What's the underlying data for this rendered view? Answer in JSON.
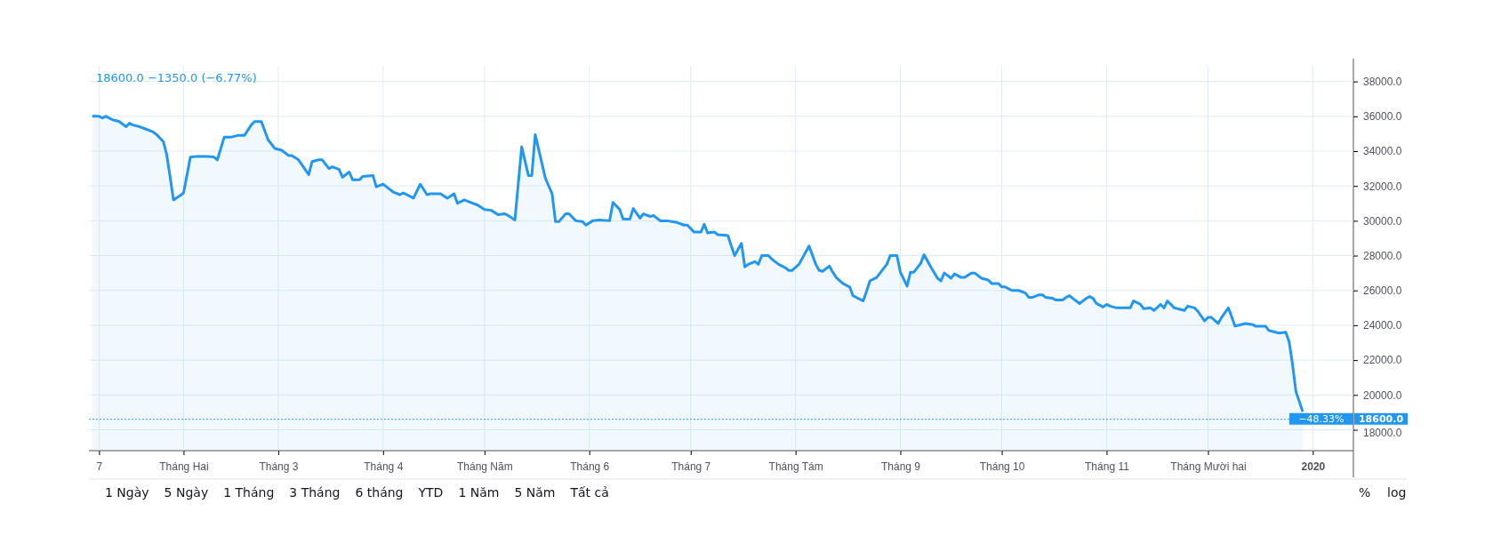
{
  "chart_data": {
    "type": "area",
    "x": [
      "2019-01-05",
      "2019-01-07",
      "2019-01-08",
      "2019-01-09",
      "2019-01-11",
      "2019-01-13",
      "2019-01-15",
      "2019-01-16",
      "2019-01-17",
      "2019-01-19",
      "2019-01-21",
      "2019-01-23",
      "2019-01-24",
      "2019-01-26",
      "2019-01-27",
      "2019-01-28",
      "2019-01-29",
      "2019-01-31",
      "2019-02-01",
      "2019-02-03",
      "2019-02-05",
      "2019-02-08",
      "2019-02-10",
      "2019-02-11",
      "2019-02-13",
      "2019-02-15",
      "2019-02-17",
      "2019-02-19",
      "2019-02-21",
      "2019-02-22",
      "2019-02-24",
      "2019-02-26",
      "2019-02-28",
      "2019-03-02",
      "2019-03-04",
      "2019-03-05",
      "2019-03-07",
      "2019-03-10",
      "2019-03-11",
      "2019-03-13",
      "2019-03-14",
      "2019-03-16",
      "2019-03-17",
      "2019-03-19",
      "2019-03-20",
      "2019-03-22",
      "2019-03-23",
      "2019-03-25",
      "2019-03-26",
      "2019-03-29",
      "2019-03-30",
      "2019-04-01",
      "2019-04-02",
      "2019-04-04",
      "2019-04-06",
      "2019-04-07",
      "2019-04-10",
      "2019-04-12",
      "2019-04-14",
      "2019-04-15",
      "2019-04-18",
      "2019-04-20",
      "2019-04-22",
      "2019-04-23",
      "2019-04-25",
      "2019-04-27",
      "2019-04-29",
      "2019-05-01",
      "2019-05-03",
      "2019-05-05",
      "2019-05-07",
      "2019-05-08",
      "2019-05-10",
      "2019-05-12",
      "2019-05-14",
      "2019-05-15",
      "2019-05-16",
      "2019-05-19",
      "2019-05-21",
      "2019-05-22",
      "2019-05-23",
      "2019-05-25",
      "2019-05-26",
      "2019-05-28",
      "2019-05-30",
      "2019-05-31",
      "2019-06-02",
      "2019-06-04",
      "2019-06-07",
      "2019-06-08",
      "2019-06-10",
      "2019-06-11",
      "2019-06-13",
      "2019-06-14",
      "2019-06-16",
      "2019-06-17",
      "2019-06-19",
      "2019-06-20",
      "2019-06-22",
      "2019-06-24",
      "2019-06-27",
      "2019-06-29",
      "2019-06-30",
      "2019-07-02",
      "2019-07-04",
      "2019-07-05",
      "2019-07-06",
      "2019-07-08",
      "2019-07-09",
      "2019-07-12",
      "2019-07-13",
      "2019-07-14",
      "2019-07-16",
      "2019-07-17",
      "2019-07-18",
      "2019-07-20",
      "2019-07-21",
      "2019-07-22",
      "2019-07-24",
      "2019-07-25",
      "2019-07-27",
      "2019-07-28",
      "2019-07-29",
      "2019-07-30",
      "2019-07-31",
      "2019-08-02",
      "2019-08-05",
      "2019-08-07",
      "2019-08-08",
      "2019-08-09",
      "2019-08-11",
      "2019-08-12",
      "2019-08-13",
      "2019-08-15",
      "2019-08-17",
      "2019-08-18",
      "2019-08-19",
      "2019-08-21",
      "2019-08-22",
      "2019-08-23",
      "2019-08-25",
      "2019-08-26",
      "2019-08-28",
      "2019-08-29",
      "2019-08-31",
      "2019-09-01",
      "2019-09-03",
      "2019-09-04",
      "2019-09-05",
      "2019-09-07",
      "2019-09-08",
      "2019-09-10",
      "2019-09-12",
      "2019-09-13",
      "2019-09-14",
      "2019-09-16",
      "2019-09-17",
      "2019-09-19",
      "2019-09-20",
      "2019-09-22",
      "2019-09-23",
      "2019-09-25",
      "2019-09-27",
      "2019-09-28",
      "2019-09-30",
      "2019-10-01",
      "2019-10-02",
      "2019-10-04",
      "2019-10-05",
      "2019-10-06",
      "2019-10-08",
      "2019-10-09",
      "2019-10-10",
      "2019-10-12",
      "2019-10-13",
      "2019-10-14",
      "2019-10-16",
      "2019-10-17",
      "2019-10-19",
      "2019-10-20",
      "2019-10-21",
      "2019-10-22",
      "2019-10-24",
      "2019-10-26",
      "2019-10-27",
      "2019-10-28",
      "2019-10-29",
      "2019-10-31",
      "2019-11-01",
      "2019-11-02",
      "2019-11-04",
      "2019-11-08",
      "2019-11-09",
      "2019-11-11",
      "2019-11-12",
      "2019-11-14",
      "2019-11-15",
      "2019-11-17",
      "2019-11-18",
      "2019-11-19",
      "2019-11-21",
      "2019-11-22",
      "2019-11-24",
      "2019-11-25",
      "2019-11-27",
      "2019-11-28",
      "2019-11-30",
      "2019-12-01",
      "2019-12-02",
      "2019-12-04",
      "2019-12-05",
      "2019-12-07",
      "2019-12-08",
      "2019-12-09",
      "2019-12-11",
      "2019-12-12",
      "2019-12-14",
      "2019-12-15",
      "2019-12-18",
      "2019-12-19",
      "2019-12-21",
      "2019-12-22",
      "2019-12-24",
      "2019-12-25",
      "2019-12-26",
      "2019-12-27",
      "2019-12-29"
    ],
    "series": [
      {
        "color": "#2196f3",
        "values": [
          36000,
          36000,
          35900,
          36000,
          35800,
          35700,
          35400,
          35600,
          35500,
          35400,
          35250,
          35100,
          34950,
          34550,
          33800,
          32550,
          31200,
          31450,
          31600,
          33650,
          33700,
          33700,
          33650,
          33500,
          34800,
          34800,
          34900,
          34900,
          35500,
          35700,
          35700,
          34650,
          34150,
          34050,
          33750,
          33750,
          33500,
          32650,
          33400,
          33500,
          33500,
          33000,
          33100,
          32950,
          32500,
          32800,
          32350,
          32350,
          32550,
          32600,
          31950,
          32100,
          31950,
          31650,
          31500,
          31600,
          31300,
          32100,
          31500,
          31550,
          31550,
          31300,
          31550,
          31000,
          31200,
          31050,
          30900,
          30650,
          30600,
          30350,
          30400,
          30300,
          30050,
          34250,
          32600,
          32600,
          34950,
          32450,
          31550,
          29950,
          29950,
          30400,
          30400,
          30000,
          29950,
          29750,
          30000,
          30050,
          30000,
          31050,
          30650,
          30100,
          30100,
          30700,
          30150,
          30400,
          30250,
          30300,
          30000,
          30000,
          29900,
          29750,
          29750,
          29350,
          29350,
          29800,
          29300,
          29350,
          29200,
          29150,
          28550,
          28000,
          28700,
          27350,
          27500,
          27650,
          27500,
          28000,
          28000,
          27800,
          27500,
          27400,
          27300,
          27150,
          27150,
          27500,
          28550,
          27500,
          27150,
          27100,
          27400,
          27050,
          26750,
          26400,
          26200,
          25700,
          25600,
          25400,
          25950,
          26550,
          26750,
          27000,
          27500,
          28000,
          28000,
          27050,
          26250,
          27050,
          27050,
          27550,
          28050,
          27350,
          26700,
          26550,
          27000,
          26700,
          26950,
          26750,
          26750,
          27000,
          27000,
          26700,
          26600,
          26400,
          26400,
          26200,
          26200,
          26000,
          26000,
          26000,
          25850,
          25600,
          25600,
          25750,
          25750,
          25600,
          25550,
          25450,
          25450,
          25600,
          25700,
          25550,
          25250,
          25550,
          25650,
          25550,
          25250,
          25050,
          25200,
          25100,
          25000,
          25000,
          25400,
          25200,
          24950,
          25000,
          24850,
          25200,
          25000,
          25400,
          25000,
          24950,
          24850,
          25100,
          25000,
          24800,
          24250,
          24450,
          24450,
          24100,
          24450,
          25000,
          24500,
          23950,
          24050,
          24100,
          24050,
          23950,
          23950,
          23700,
          23600,
          23550,
          23600,
          23050,
          21750,
          20200,
          19050
        ]
      }
    ],
    "xlim": [
      "2019-01-04",
      "2020-01-13"
    ],
    "xticks": [
      {
        "value": "2019-01-07",
        "label": "7"
      },
      {
        "value": "2019-02-01",
        "label": "Tháng Hai"
      },
      {
        "value": "2019-03-01",
        "label": "Tháng 3"
      },
      {
        "value": "2019-04-01",
        "label": "Tháng 4"
      },
      {
        "value": "2019-05-01",
        "label": "Tháng Năm"
      },
      {
        "value": "2019-06-01",
        "label": "Tháng 6"
      },
      {
        "value": "2019-07-01",
        "label": "Tháng 7"
      },
      {
        "value": "2019-08-01",
        "label": "Tháng Tám"
      },
      {
        "value": "2019-09-01",
        "label": "Tháng 9"
      },
      {
        "value": "2019-10-01",
        "label": "Tháng 10"
      },
      {
        "value": "2019-11-01",
        "label": "Tháng 11"
      },
      {
        "value": "2019-12-01",
        "label": "Tháng Mười hai"
      },
      {
        "value": "2020-01-01",
        "label": "2020"
      }
    ],
    "ylim": [
      16800,
      38900
    ],
    "yticks": [
      {
        "value": 18000,
        "label": "18000.0"
      },
      {
        "value": 20000,
        "label": "20000.0"
      },
      {
        "value": 22000,
        "label": "22000.0"
      },
      {
        "value": 24000,
        "label": "24000.0"
      },
      {
        "value": 26000,
        "label": "26000.0"
      },
      {
        "value": 28000,
        "label": "28000.0"
      },
      {
        "value": 30000,
        "label": "30000.0"
      },
      {
        "value": 32000,
        "label": "32000.0"
      },
      {
        "value": 34000,
        "label": "34000.0"
      },
      {
        "value": 36000,
        "label": "36000.0"
      },
      {
        "value": 38000,
        "label": "38000.0"
      }
    ],
    "grid": true,
    "ref_lines": [
      {
        "axis": "y",
        "value": 18600,
        "label": "18600.0",
        "color": "#2196f3",
        "line_style": "dotted"
      }
    ],
    "annotations": [
      "18600.0 −1350.0 (−6.77%)",
      "−48.33%",
      "1 Ngày",
      "5 Ngày",
      "1 Tháng",
      "3 Tháng",
      "6 tháng",
      "YTD",
      "1 Năm",
      "5 Năm",
      "Tất cả",
      "%",
      "log"
    ]
  }
}
